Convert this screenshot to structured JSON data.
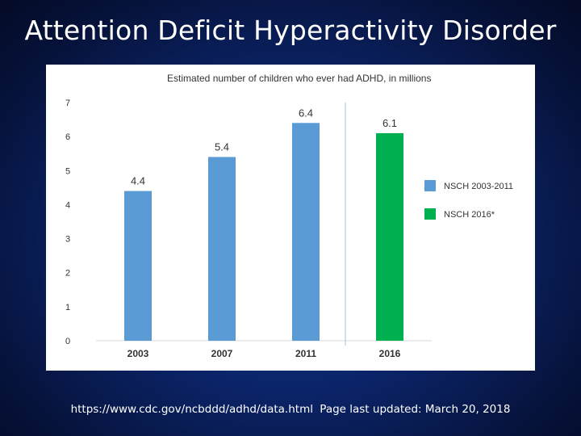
{
  "slide": {
    "title": "Attention Deficit Hyperactivity Disorder",
    "source_url": "https://www.cdc.gov/ncbddd/adhd/data.html",
    "source_updated": "Page last updated: March 20, 2018"
  },
  "chart_data": {
    "type": "bar",
    "title": "Estimated number of children who ever had ADHD, in millions",
    "xlabel": "",
    "ylabel": "",
    "ylim": [
      0,
      7
    ],
    "yticks": [
      "0",
      "1",
      "2",
      "3",
      "4",
      "5",
      "6",
      "7"
    ],
    "categories": [
      "2003",
      "2007",
      "2011",
      "2016"
    ],
    "values": [
      4.4,
      5.4,
      6.4,
      6.1
    ],
    "value_labels": [
      "4.4",
      "5.4",
      "6.4",
      "6.1"
    ],
    "series_index": [
      0,
      0,
      0,
      1
    ],
    "series": [
      {
        "name": "NSCH 2003-2011",
        "color": "#5b9bd5"
      },
      {
        "name": "NSCH 2016*",
        "color": "#00b050"
      }
    ],
    "legend_position": "right",
    "grid": false,
    "divider_after_category": "2011"
  }
}
